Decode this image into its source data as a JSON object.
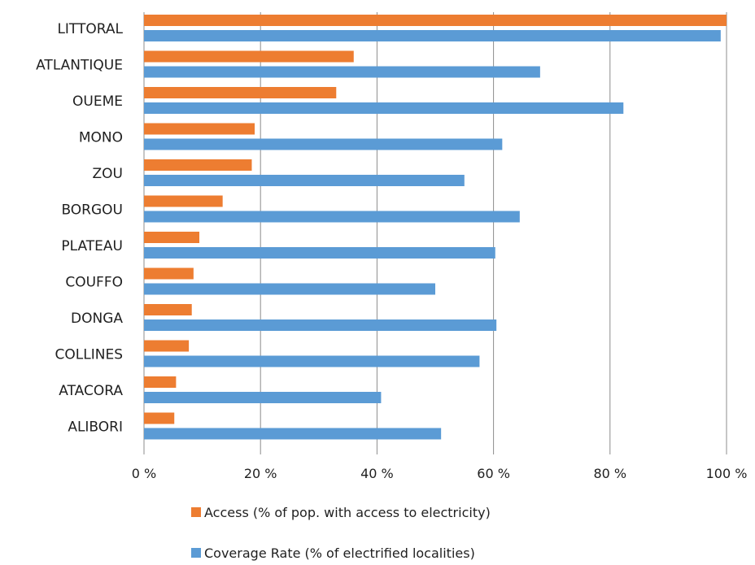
{
  "chart_data": {
    "type": "bar",
    "orientation": "horizontal",
    "categories": [
      "LITTORAL",
      "ATLANTIQUE",
      "OUEME",
      "MONO",
      "ZOU",
      "BORGOU",
      "PLATEAU",
      "COUFFO",
      "DONGA",
      "COLLINES",
      "ATACORA",
      "ALIBORI"
    ],
    "series": [
      {
        "name": "Access (% of pop. with access to electricity)",
        "color": "#ED7D31",
        "values": [
          100,
          36,
          33,
          19,
          18.5,
          13.5,
          9.5,
          8.5,
          8.2,
          7.7,
          5.5,
          5.2
        ]
      },
      {
        "name": "Coverage Rate (% of electrified localities)",
        "color": "#5B9BD5",
        "values": [
          99,
          68,
          82.3,
          61.5,
          55,
          64.5,
          60.3,
          50,
          60.5,
          57.6,
          40.7,
          51
        ]
      }
    ],
    "x_ticks": [
      "0 %",
      "20 %",
      "40 %",
      "60 %",
      "80 %",
      "100 %"
    ],
    "xlim": [
      0,
      100
    ],
    "grid": true,
    "legend_position": "bottom",
    "title": "",
    "xlabel": "",
    "ylabel": ""
  }
}
